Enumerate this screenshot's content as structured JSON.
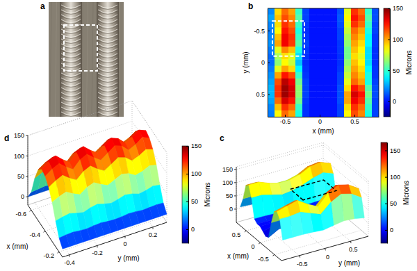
{
  "chart_data": [
    {
      "type": "image",
      "title": "a"
    },
    {
      "type": "heatmap",
      "title": "b",
      "xlabel": "x (mm)",
      "ylabel": "y (mm)",
      "x": [
        -0.7,
        -0.6,
        -0.5,
        -0.4,
        -0.3,
        -0.2,
        -0.1,
        0,
        0.1,
        0.2,
        0.3,
        0.4,
        0.5,
        0.6,
        0.7,
        0.8
      ],
      "y": [
        -0.8,
        -0.7,
        -0.6,
        -0.5,
        -0.4,
        -0.3,
        -0.2,
        -0.1,
        0,
        0.1,
        0.2,
        0.3,
        0.4,
        0.5,
        0.6,
        0.7,
        0.8
      ],
      "z": [
        [
          20,
          90,
          110,
          100,
          50,
          8,
          0,
          0,
          0,
          0,
          10,
          80,
          120,
          110,
          50,
          10
        ],
        [
          25,
          95,
          115,
          105,
          55,
          8,
          0,
          0,
          0,
          0,
          12,
          85,
          125,
          115,
          55,
          10
        ],
        [
          20,
          90,
          120,
          110,
          50,
          6,
          0,
          0,
          0,
          0,
          10,
          80,
          120,
          110,
          50,
          8
        ],
        [
          18,
          85,
          125,
          115,
          45,
          5,
          0,
          0,
          0,
          0,
          8,
          75,
          110,
          100,
          45,
          8
        ],
        [
          20,
          95,
          130,
          120,
          50,
          6,
          0,
          0,
          0,
          0,
          8,
          70,
          105,
          95,
          40,
          6
        ],
        [
          22,
          100,
          130,
          118,
          55,
          8,
          0,
          0,
          0,
          0,
          6,
          65,
          100,
          90,
          40,
          6
        ],
        [
          18,
          80,
          105,
          95,
          45,
          6,
          0,
          0,
          0,
          0,
          6,
          60,
          95,
          85,
          35,
          5
        ],
        [
          15,
          70,
          90,
          80,
          35,
          5,
          0,
          0,
          0,
          0,
          5,
          60,
          90,
          80,
          35,
          5
        ],
        [
          15,
          65,
          85,
          75,
          30,
          4,
          0,
          0,
          0,
          0,
          5,
          65,
          95,
          85,
          35,
          5
        ],
        [
          18,
          80,
          100,
          90,
          40,
          5,
          0,
          0,
          0,
          0,
          6,
          70,
          100,
          90,
          40,
          6
        ],
        [
          22,
          100,
          125,
          115,
          50,
          6,
          0,
          0,
          0,
          0,
          8,
          75,
          105,
          95,
          45,
          6
        ],
        [
          25,
          115,
          140,
          130,
          60,
          8,
          0,
          0,
          0,
          0,
          8,
          80,
          110,
          100,
          45,
          8
        ],
        [
          28,
          120,
          145,
          135,
          65,
          8,
          0,
          0,
          0,
          0,
          10,
          90,
          125,
          115,
          55,
          10
        ],
        [
          28,
          120,
          145,
          135,
          65,
          8,
          0,
          0,
          0,
          0,
          10,
          100,
          135,
          125,
          60,
          10
        ],
        [
          25,
          110,
          135,
          125,
          60,
          6,
          0,
          0,
          0,
          0,
          10,
          100,
          130,
          120,
          55,
          8
        ],
        [
          20,
          95,
          120,
          110,
          50,
          5,
          0,
          0,
          0,
          0,
          8,
          90,
          120,
          110,
          50,
          8
        ],
        [
          18,
          85,
          110,
          100,
          45,
          5,
          0,
          0,
          0,
          0,
          8,
          85,
          115,
          105,
          45,
          8
        ]
      ],
      "xlim": [
        -0.75,
        0.85
      ],
      "ylim": [
        -0.85,
        0.85
      ],
      "xticks": [
        -0.5,
        0,
        0.5
      ],
      "yticks": [
        -0.5,
        0,
        0.5
      ],
      "colorbar": {
        "label": "Microns",
        "lim": [
          -25,
          150
        ],
        "ticks": [
          0,
          50,
          100,
          150
        ]
      },
      "zoom_box": {
        "x": [
          -0.68,
          -0.22
        ],
        "y": [
          -0.65,
          -0.1
        ]
      }
    },
    {
      "type": "surface",
      "title": "c",
      "xlabel": "x (mm)",
      "ylabel": "y (mm)",
      "x": [
        -0.7,
        -0.6,
        -0.5,
        -0.4,
        -0.3,
        -0.2,
        -0.1,
        0,
        0.1,
        0.2,
        0.3,
        0.4,
        0.5,
        0.6,
        0.7,
        0.8
      ],
      "y": [
        -0.8,
        -0.6,
        -0.4,
        -0.2,
        0,
        0.2,
        0.4,
        0.6,
        0.8
      ],
      "z": [
        [
          20,
          90,
          110,
          100,
          50,
          -15,
          -20,
          -10,
          0,
          0,
          10,
          80,
          120,
          110,
          50,
          10
        ],
        [
          20,
          90,
          120,
          110,
          50,
          6,
          0,
          0,
          0,
          0,
          10,
          80,
          120,
          110,
          50,
          8
        ],
        [
          20,
          95,
          130,
          120,
          50,
          6,
          0,
          0,
          0,
          0,
          8,
          70,
          105,
          95,
          40,
          6
        ],
        [
          18,
          80,
          105,
          95,
          45,
          6,
          0,
          0,
          0,
          0,
          6,
          60,
          95,
          85,
          35,
          5
        ],
        [
          15,
          65,
          85,
          75,
          30,
          4,
          0,
          0,
          0,
          0,
          5,
          65,
          95,
          85,
          35,
          5
        ],
        [
          22,
          100,
          125,
          115,
          50,
          6,
          0,
          0,
          0,
          0,
          8,
          75,
          105,
          95,
          45,
          6
        ],
        [
          28,
          120,
          145,
          135,
          65,
          8,
          0,
          0,
          0,
          0,
          10,
          90,
          125,
          115,
          55,
          10
        ],
        [
          25,
          110,
          135,
          125,
          60,
          6,
          0,
          0,
          0,
          0,
          10,
          100,
          130,
          120,
          55,
          8
        ],
        [
          18,
          85,
          110,
          100,
          45,
          5,
          0,
          0,
          0,
          0,
          8,
          85,
          115,
          105,
          45,
          8
        ]
      ],
      "xlim": [
        -0.75,
        0.85
      ],
      "ylim": [
        -0.85,
        0.85
      ],
      "zlim": [
        -50,
        160
      ],
      "xticks": [
        -0.5,
        0,
        0.5
      ],
      "yticks": [
        -0.5,
        0,
        0.5
      ],
      "zticks": [
        0,
        50,
        100,
        150
      ],
      "colorbar": {
        "label": "Microns",
        "lim": [
          -25,
          165
        ],
        "ticks": [
          0,
          50,
          100,
          150
        ]
      },
      "zoom_box": {
        "x": [
          -0.7,
          -0.25
        ],
        "y": [
          -0.4,
          0.25
        ],
        "z": 150
      }
    },
    {
      "type": "surface",
      "title": "d",
      "xlabel": "x (mm)",
      "ylabel": "y (mm)",
      "x": [
        -0.65,
        -0.6,
        -0.55,
        -0.5,
        -0.45,
        -0.4,
        -0.35,
        -0.3,
        -0.25,
        -0.2,
        -0.15
      ],
      "y": [
        -0.45,
        -0.4,
        -0.35,
        -0.3,
        -0.25,
        -0.2,
        -0.15,
        -0.1,
        -0.05,
        0,
        0.05,
        0.1,
        0.15,
        0.2,
        0.25,
        0.3
      ],
      "z": [
        [
          0,
          24,
          71,
          105,
          119,
          114,
          100,
          76,
          43,
          14,
          0
        ],
        [
          0,
          26,
          79,
          116,
          131,
          126,
          110,
          84,
          47,
          16,
          0
        ],
        [
          0,
          28,
          84,
          123,
          140,
          134,
          118,
          90,
          50,
          17,
          0
        ],
        [
          0,
          25,
          75,
          110,
          125,
          120,
          105,
          80,
          45,
          15,
          0
        ],
        [
          0,
          23,
          68,
          99,
          113,
          108,
          95,
          72,
          41,
          14,
          0
        ],
        [
          0,
          26,
          79,
          116,
          131,
          126,
          110,
          84,
          47,
          16,
          0
        ],
        [
          0,
          28,
          84,
          123,
          140,
          134,
          118,
          90,
          50,
          17,
          0
        ],
        [
          0,
          25,
          75,
          110,
          125,
          120,
          105,
          80,
          45,
          15,
          0
        ],
        [
          0,
          23,
          68,
          99,
          113,
          108,
          95,
          72,
          41,
          14,
          0
        ],
        [
          0,
          25,
          75,
          110,
          125,
          120,
          105,
          80,
          45,
          15,
          0
        ],
        [
          0,
          28,
          83,
          121,
          138,
          132,
          116,
          88,
          50,
          17,
          0
        ],
        [
          0,
          26,
          79,
          116,
          131,
          126,
          110,
          84,
          47,
          16,
          0
        ],
        [
          0,
          23,
          69,
          101,
          115,
          110,
          97,
          74,
          41,
          14,
          0
        ],
        [
          0,
          25,
          74,
          108,
          123,
          118,
          103,
          78,
          44,
          15,
          0
        ],
        [
          0,
          27,
          81,
          119,
          135,
          130,
          113,
          86,
          49,
          16,
          0
        ],
        [
          0,
          26,
          77,
          112,
          128,
          122,
          107,
          82,
          46,
          15,
          0
        ]
      ],
      "xlim": [
        -0.65,
        -0.15
      ],
      "ylim": [
        -0.45,
        0.3
      ],
      "zlim": [
        -20,
        150
      ],
      "xticks": [
        -0.6,
        -0.4,
        -0.2
      ],
      "yticks": [
        -0.4,
        -0.2,
        0,
        0.2
      ],
      "zticks": [
        0,
        50,
        100,
        150
      ],
      "colorbar": {
        "label": "Microns",
        "lim": [
          -25,
          150
        ],
        "ticks": [
          0,
          50,
          100,
          150
        ]
      }
    }
  ]
}
